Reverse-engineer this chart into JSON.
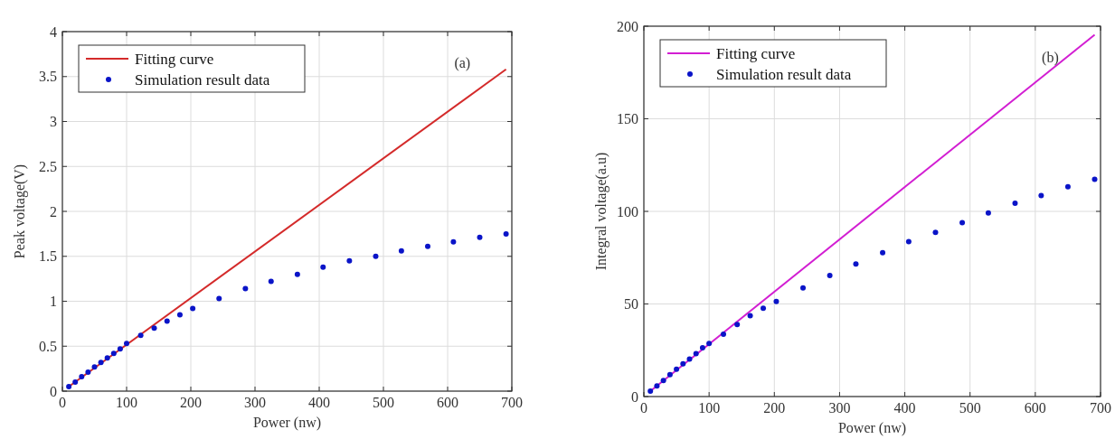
{
  "chart_data": [
    {
      "type": "scatter",
      "xlabel": "Power (nw)",
      "ylabel": "Peak voltage(V)",
      "annotations": [
        "(a)"
      ],
      "xlim": [
        0,
        700
      ],
      "xticks": [
        0,
        100,
        200,
        300,
        400,
        500,
        600,
        700
      ],
      "ylim": [
        0,
        4
      ],
      "yticks": [
        0,
        0.5,
        1,
        1.5,
        2,
        2.5,
        3,
        3.5,
        4
      ],
      "grid": true,
      "legend": "top left",
      "series": [
        {
          "name": "Fitting curve",
          "type": "line",
          "color": "#d42a2a",
          "marker": "none",
          "line_style": "solid",
          "x": [
            10,
            691
          ],
          "values": [
            0.05,
            3.58
          ]
        },
        {
          "name": "Simulation result data",
          "color": "#0a14c8",
          "marker": "circle",
          "x": [
            10,
            20,
            30,
            40,
            50,
            60,
            70,
            80,
            90,
            100,
            122,
            143,
            163,
            183,
            203,
            244,
            285,
            325,
            366,
            406,
            447,
            488,
            528,
            569,
            609,
            650,
            691
          ],
          "values": [
            0.05,
            0.1,
            0.16,
            0.21,
            0.27,
            0.32,
            0.37,
            0.42,
            0.47,
            0.53,
            0.62,
            0.7,
            0.78,
            0.85,
            0.92,
            1.03,
            1.14,
            1.22,
            1.3,
            1.38,
            1.45,
            1.5,
            1.56,
            1.61,
            1.66,
            1.71,
            1.75
          ]
        }
      ]
    },
    {
      "type": "scatter",
      "xlabel": "Power (nw)",
      "ylabel": "Integral voltage(a.u)",
      "annotations": [
        "(b)"
      ],
      "xlim": [
        0,
        700
      ],
      "xticks": [
        0,
        100,
        200,
        300,
        400,
        500,
        600,
        700
      ],
      "ylim": [
        0,
        200
      ],
      "yticks": [
        0,
        50,
        100,
        150,
        200
      ],
      "grid": true,
      "legend": "top left",
      "series": [
        {
          "name": "Fitting curve",
          "type": "line",
          "color": "#d21ed2",
          "marker": "none",
          "line_style": "solid",
          "x": [
            10,
            691
          ],
          "values": [
            2.9,
            195.4
          ]
        },
        {
          "name": "Simulation result data",
          "color": "#0a14c8",
          "marker": "circle",
          "x": [
            10,
            20,
            30,
            40,
            50,
            60,
            70,
            80,
            90,
            100,
            122,
            143,
            163,
            183,
            203,
            244,
            285,
            325,
            366,
            406,
            447,
            488,
            528,
            569,
            609,
            650,
            691
          ],
          "values": [
            2.9,
            5.7,
            8.7,
            11.8,
            14.7,
            17.7,
            20.3,
            23.2,
            26.3,
            28.7,
            33.7,
            38.9,
            43.6,
            47.7,
            51.4,
            58.7,
            65.4,
            71.6,
            77.7,
            83.6,
            88.7,
            93.9,
            99.1,
            104.4,
            108.5,
            113.3,
            117.3
          ]
        }
      ]
    }
  ]
}
